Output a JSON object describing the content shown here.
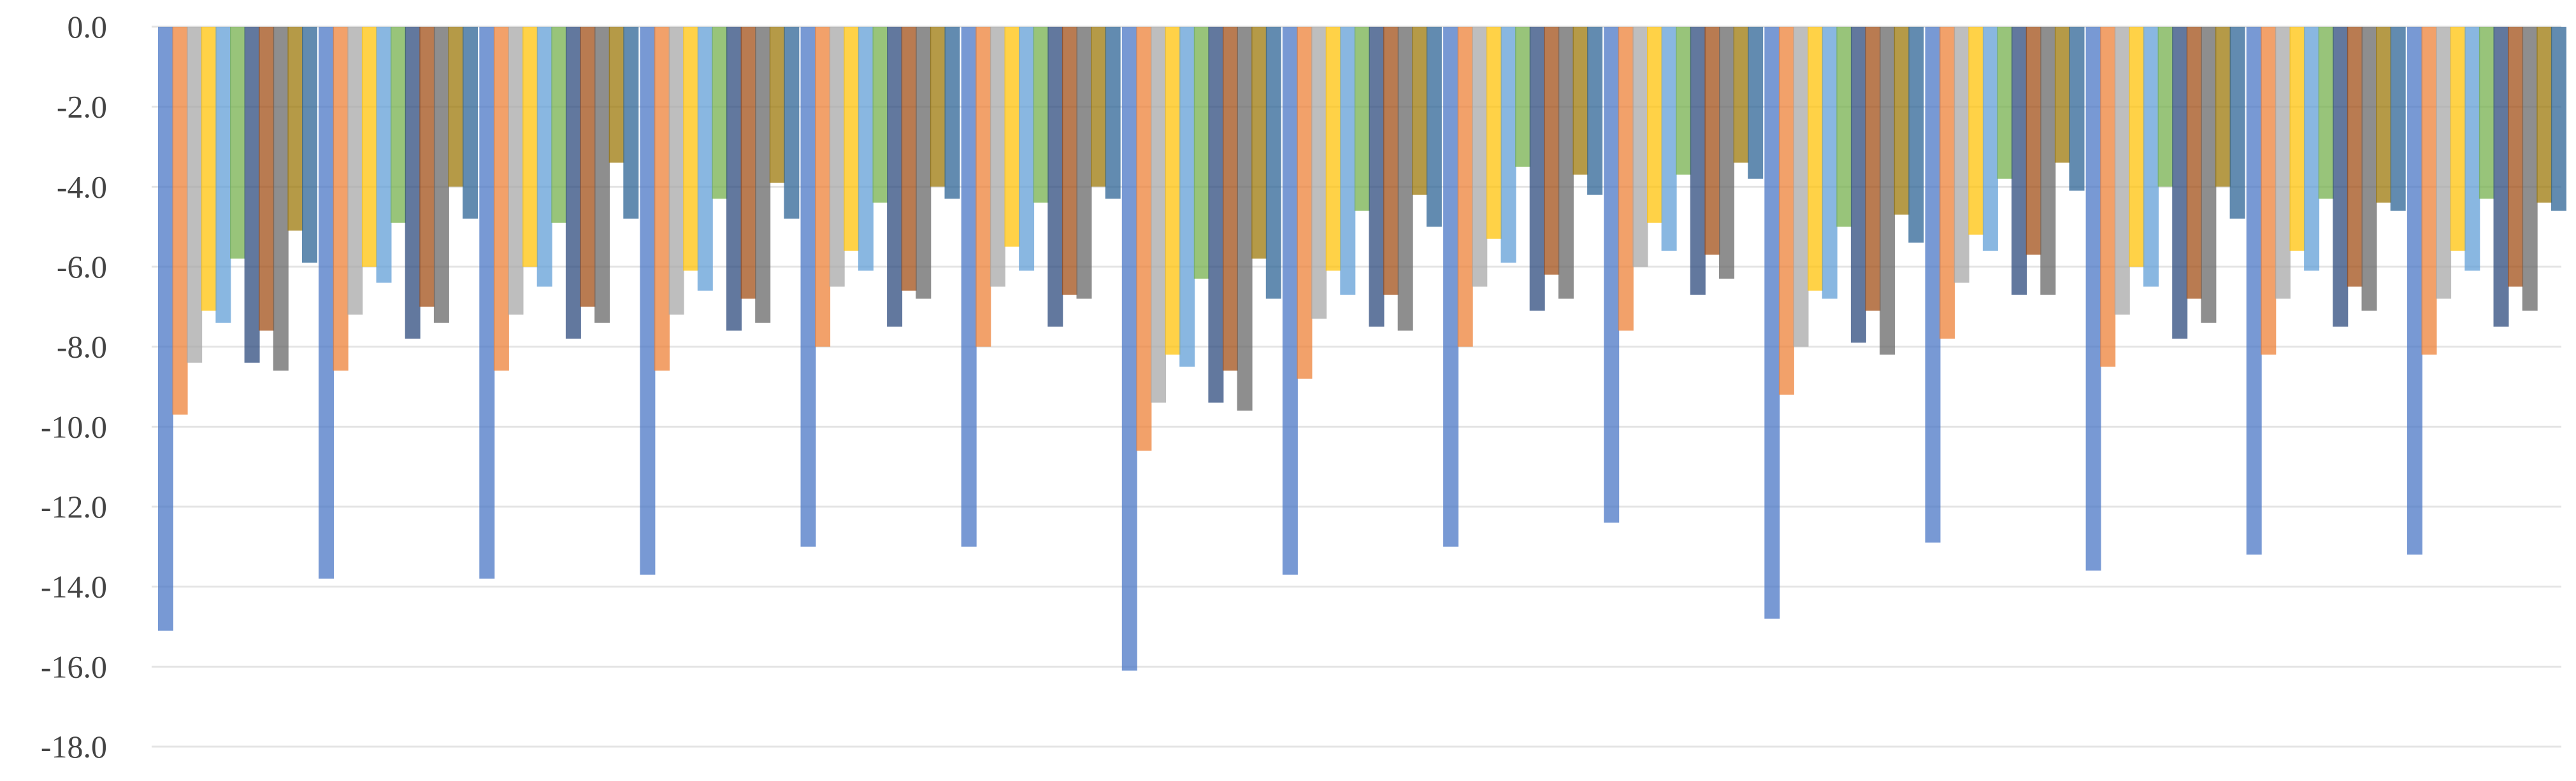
{
  "chart_data": {
    "type": "bar",
    "title": "",
    "xlabel": "",
    "ylabel": "",
    "ylim": [
      -18.0,
      0.0
    ],
    "yticks": [
      "0.0",
      "-2.0",
      "-4.0",
      "-6.0",
      "-8.0",
      "-10.0",
      "-12.0",
      "-14.0",
      "-16.0",
      "-18.0"
    ],
    "grid": true,
    "legend": "none",
    "categories": [
      "",
      "",
      "",
      "",
      "",
      "",
      "",
      "",
      "",
      "",
      "",
      "",
      "",
      "",
      ""
    ],
    "series": [
      {
        "color": "#4472C4",
        "values": [
          -15.1,
          -13.8,
          -13.8,
          -13.7,
          -13.0,
          -13.0,
          -16.1,
          -13.7,
          -13.0,
          -12.4,
          -14.8,
          -12.9,
          -13.6,
          -13.2,
          -13.2
        ]
      },
      {
        "color": "#ED7D31",
        "values": [
          -9.7,
          -8.6,
          -8.6,
          -8.6,
          -8.0,
          -8.0,
          -10.6,
          -8.8,
          -8.0,
          -7.6,
          -9.2,
          -7.8,
          -8.5,
          -8.2,
          -8.2
        ]
      },
      {
        "color": "#A5A5A5",
        "values": [
          -8.4,
          -7.2,
          -7.2,
          -7.2,
          -6.5,
          -6.5,
          -9.4,
          -7.3,
          -6.5,
          -6.0,
          -8.0,
          -6.4,
          -7.2,
          -6.8,
          -6.8
        ]
      },
      {
        "color": "#FFC000",
        "values": [
          -7.1,
          -6.0,
          -6.0,
          -6.1,
          -5.6,
          -5.5,
          -8.2,
          -6.1,
          -5.3,
          -4.9,
          -6.6,
          -5.2,
          -6.0,
          -5.6,
          -5.6
        ]
      },
      {
        "color": "#5B9BD5",
        "values": [
          -7.4,
          -6.4,
          -6.5,
          -6.6,
          -6.1,
          -6.1,
          -8.5,
          -6.7,
          -5.9,
          -5.6,
          -6.8,
          -5.6,
          -6.5,
          -6.1,
          -6.1
        ]
      },
      {
        "color": "#70AD47",
        "values": [
          -5.8,
          -4.9,
          -4.9,
          -4.3,
          -4.4,
          -4.4,
          -6.3,
          -4.6,
          -3.5,
          -3.7,
          -5.0,
          -3.8,
          -4.0,
          -4.3,
          -4.3
        ]
      },
      {
        "color": "#264478",
        "values": [
          -8.4,
          -7.8,
          -7.8,
          -7.6,
          -7.5,
          -7.5,
          -9.4,
          -7.5,
          -7.1,
          -6.7,
          -7.9,
          -6.7,
          -7.8,
          -7.5,
          -7.5
        ]
      },
      {
        "color": "#9E480E",
        "values": [
          -7.6,
          -7.0,
          -7.0,
          -6.8,
          -6.6,
          -6.7,
          -8.6,
          -6.7,
          -6.2,
          -5.7,
          -7.1,
          -5.7,
          -6.8,
          -6.5,
          -6.5
        ]
      },
      {
        "color": "#636363",
        "values": [
          -8.6,
          -7.4,
          -7.4,
          -7.4,
          -6.8,
          -6.8,
          -9.6,
          -7.6,
          -6.8,
          -6.3,
          -8.2,
          -6.7,
          -7.4,
          -7.1,
          -7.1
        ]
      },
      {
        "color": "#997300",
        "values": [
          -5.1,
          -4.0,
          -3.4,
          -3.9,
          -4.0,
          -4.0,
          -5.8,
          -4.2,
          -3.7,
          -3.4,
          -4.7,
          -3.4,
          -4.0,
          -4.4,
          -4.4
        ]
      },
      {
        "color": "#255E91",
        "values": [
          -5.9,
          -4.8,
          -4.8,
          -4.8,
          -4.3,
          -4.3,
          -6.8,
          -5.0,
          -4.2,
          -3.8,
          -5.4,
          -4.1,
          -4.8,
          -4.6,
          -4.6
        ]
      }
    ]
  }
}
